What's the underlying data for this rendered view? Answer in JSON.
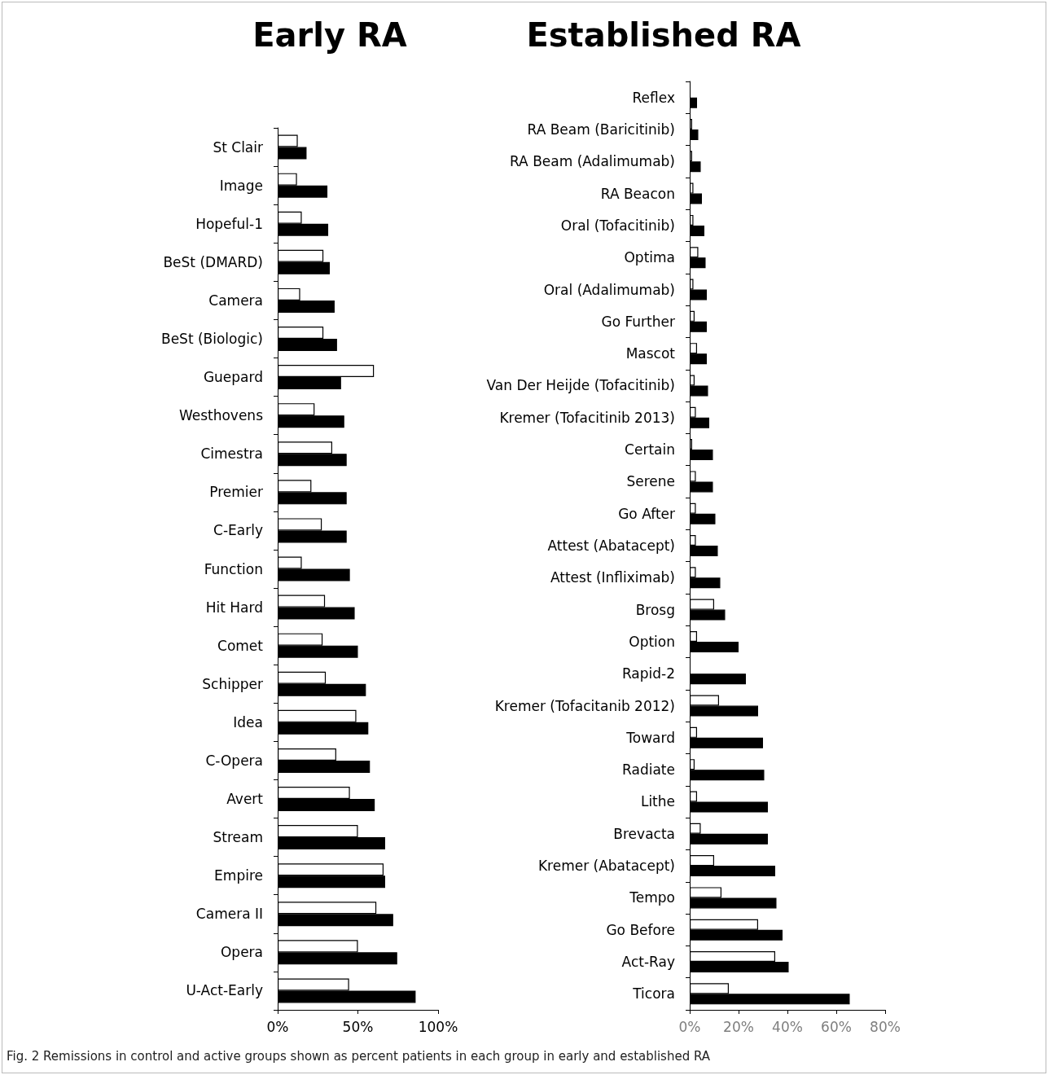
{
  "chart_data": [
    {
      "type": "bar",
      "orientation": "horizontal",
      "title": "Early RA",
      "categories": [
        "St Clair",
        "Image",
        "Hopeful-1",
        "BeSt (DMARD)",
        "Camera",
        "BeSt (Biologic)",
        "Guepard",
        "Westhovens",
        "Cimestra",
        "Premier",
        "C-Early",
        "Function",
        "Hit Hard",
        "Comet",
        "Schipper",
        "Idea",
        "C-Opera",
        "Avert",
        "Stream",
        "Empire",
        "Camera II",
        "Opera",
        "U-Act-Early"
      ],
      "series": [
        {
          "color": "#ffffff",
          "values": [
            12.5,
            12,
            15,
            28.5,
            14,
            28.5,
            60,
            23,
            34,
            21,
            27.5,
            15,
            29.5,
            28,
            30,
            49,
            36.5,
            45,
            50,
            66,
            61.5,
            50,
            44.5
          ]
        },
        {
          "color": "#000000",
          "values": [
            18,
            31,
            31.5,
            32.5,
            35.5,
            37,
            39.5,
            41.5,
            43,
            43,
            43,
            45,
            48,
            50,
            55,
            56.5,
            57.5,
            60.5,
            67,
            67,
            72,
            74.5,
            86
          ]
        }
      ],
      "xlim": [
        0,
        100
      ],
      "xticks": [
        {
          "value": 0,
          "label": "0%"
        },
        {
          "value": 50,
          "label": "50%"
        },
        {
          "value": 100,
          "label": "100%"
        }
      ],
      "grid": false,
      "annotations": [
        "Fig. 2 Remissions in control and active groups shown as percent patients in each group in early and established RA"
      ]
    },
    {
      "type": "bar",
      "orientation": "horizontal",
      "title": "Established RA",
      "categories": [
        "Reflex",
        "RA Beam (Baricitinib)",
        "RA Beam (Adalimumab)",
        "RA Beacon",
        "Oral (Tofacitinib)",
        "Optima",
        "Oral (Adalimumab)",
        "Go Further",
        "Mascot",
        "Van Der Heijde (Tofacitinib)",
        "Kremer (Tofacitinib 2013)",
        "Certain",
        "Serene",
        "Go After",
        "Attest (Abatacept)",
        "Attest (Infliximab)",
        "Brosg",
        "Option",
        "Rapid-2",
        "Kremer (Tofacitanib 2012)",
        "Toward",
        "Radiate",
        "Lithe",
        "Brevacta",
        "Kremer (Abatacept)",
        "Tempo",
        "Go Before",
        "Act-Ray",
        "Ticora"
      ],
      "series": [
        {
          "color": "#ffffff",
          "values": [
            null,
            1,
            1,
            1.5,
            1.5,
            3.5,
            1.5,
            2,
            3,
            2,
            2.5,
            1,
            2.5,
            2.5,
            2.5,
            2.5,
            10,
            3,
            null,
            12,
            3,
            2,
            3,
            4.5,
            10,
            13,
            28,
            35,
            16
          ]
        },
        {
          "color": "#000000",
          "values": [
            3,
            3.5,
            4.5,
            5,
            6,
            6.5,
            7,
            7,
            7,
            7.5,
            8,
            9.5,
            9.5,
            10.5,
            11.5,
            12.5,
            14.5,
            20,
            23,
            28,
            30,
            30.5,
            32,
            32,
            35,
            35.5,
            38,
            40.5,
            65.5
          ]
        }
      ],
      "xlim": [
        0,
        80
      ],
      "xticks": [
        {
          "value": 0,
          "label": "0%"
        },
        {
          "value": 20,
          "label": "20%"
        },
        {
          "value": 40,
          "label": "40%"
        },
        {
          "value": 60,
          "label": "60%"
        },
        {
          "value": 80,
          "label": "80%"
        }
      ],
      "grid": false
    }
  ]
}
